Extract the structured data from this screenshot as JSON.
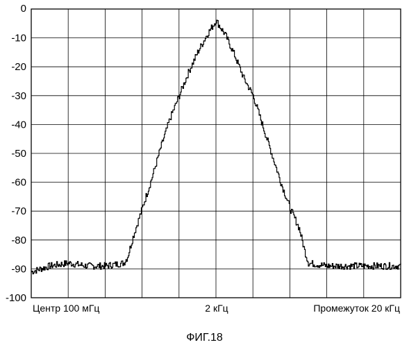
{
  "figure_caption": "ФИГ.18",
  "chart_data": {
    "type": "line",
    "title": "",
    "xlabel": "",
    "ylabel": "",
    "x_labels": {
      "left": "Центр 100 мГц",
      "center": "2 кГц",
      "right": "Промежуток 20 кГц"
    },
    "xlim": [
      -10,
      10
    ],
    "ylim": [
      -100,
      0
    ],
    "y_ticks": [
      0,
      -10,
      -20,
      -30,
      -40,
      -50,
      -60,
      -70,
      -80,
      -90,
      -100
    ],
    "grid": true,
    "series": [
      {
        "x": [
          -10,
          -9,
          -8,
          -7,
          -6,
          -5,
          -4.8,
          -4.5,
          -4,
          -3.5,
          -3,
          -2.5,
          -2,
          -1.5,
          -1,
          -0.5,
          0,
          0.5,
          1,
          1.5,
          2,
          2.5,
          3,
          3.5,
          4,
          4.5,
          4.8,
          5,
          6,
          7,
          8,
          9,
          10
        ],
        "y": [
          -91,
          -89,
          -88,
          -89,
          -89,
          -88,
          -86,
          -79,
          -69,
          -59,
          -48,
          -38,
          -30,
          -22,
          -15,
          -9,
          -4,
          -9,
          -16,
          -24,
          -30,
          -40,
          -50,
          -60,
          -69,
          -76,
          -84,
          -88,
          -89,
          -89,
          -89,
          -89,
          -89
        ]
      }
    ]
  }
}
